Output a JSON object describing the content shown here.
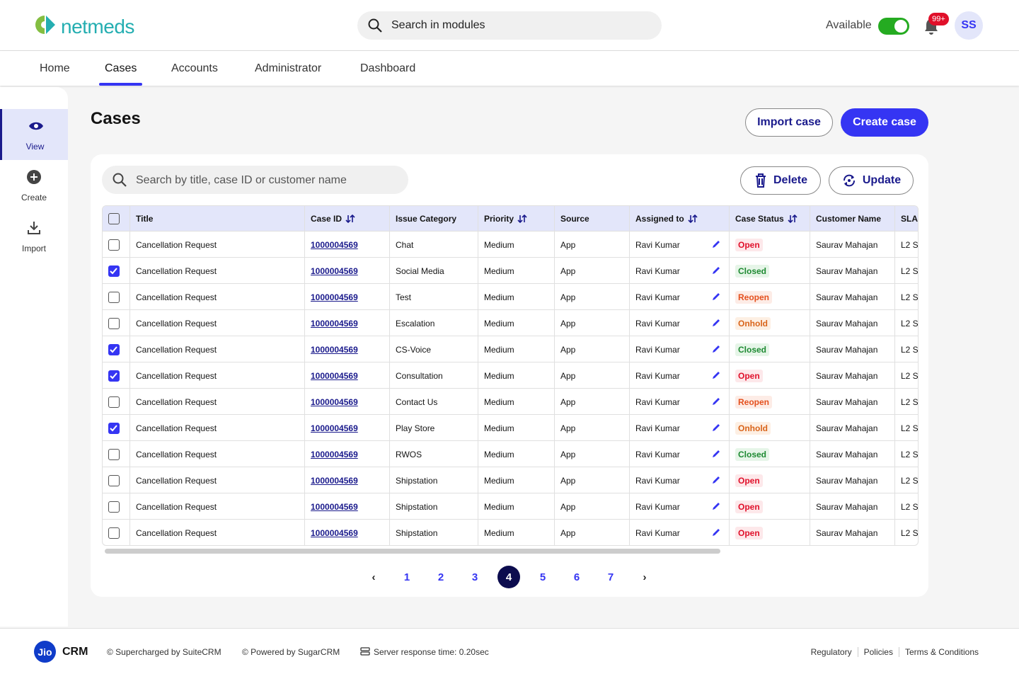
{
  "header": {
    "logo": "netmeds",
    "search_placeholder": "Search in modules",
    "availability": "Available",
    "notification_badge": "99+",
    "avatar": "SS"
  },
  "nav": [
    "Home",
    "Cases",
    "Accounts",
    "Administrator",
    "Dashboard"
  ],
  "nav_active": "Cases",
  "sidebar": [
    "View",
    "Create",
    "Import"
  ],
  "page": {
    "title": "Cases",
    "import_button": "Import case",
    "create_button": "Create case"
  },
  "toolbar": {
    "search_placeholder": "Search by title, case ID or customer name",
    "delete": "Delete",
    "update": "Update"
  },
  "table": {
    "columns": [
      "Title",
      "Case ID",
      "Issue Category",
      "Priority",
      "Source",
      "Assigned to",
      "Case Status",
      "Customer Name",
      "SLA"
    ],
    "status_colors": {
      "Open": {
        "color": "#e0102a",
        "bg": "#fde8ea"
      },
      "Closed": {
        "color": "#1e8a32",
        "bg": "#e6f5e8"
      },
      "Reopen": {
        "color": "#e4501e",
        "bg": "#fdece6"
      },
      "Onhold": {
        "color": "#d9641a",
        "bg": "#fdefe3"
      }
    },
    "rows": [
      {
        "checked": false,
        "cells": [
          "Cancellation Request",
          "1000004569",
          "Chat",
          "Medium",
          "App",
          "Ravi Kumar",
          "Open",
          "Saurav Mahajan",
          "L2 S"
        ]
      },
      {
        "checked": true,
        "cells": [
          "Cancellation Request",
          "1000004569",
          "Social Media",
          "Medium",
          "App",
          "Ravi Kumar",
          "Closed",
          "Saurav Mahajan",
          "L2 S"
        ]
      },
      {
        "checked": false,
        "cells": [
          "Cancellation Request",
          "1000004569",
          "Test",
          "Medium",
          "App",
          "Ravi Kumar",
          "Reopen",
          "Saurav Mahajan",
          "L2 S"
        ]
      },
      {
        "checked": false,
        "cells": [
          "Cancellation Request",
          "1000004569",
          "Escalation",
          "Medium",
          "App",
          "Ravi Kumar",
          "Onhold",
          "Saurav Mahajan",
          "L2 S"
        ]
      },
      {
        "checked": true,
        "cells": [
          "Cancellation Request",
          "1000004569",
          "CS-Voice",
          "Medium",
          "App",
          "Ravi Kumar",
          "Closed",
          "Saurav Mahajan",
          "L2 S"
        ]
      },
      {
        "checked": true,
        "cells": [
          "Cancellation Request",
          "1000004569",
          "Consultation",
          "Medium",
          "App",
          "Ravi Kumar",
          "Open",
          "Saurav Mahajan",
          "L2 S"
        ]
      },
      {
        "checked": false,
        "cells": [
          "Cancellation Request",
          "1000004569",
          "Contact Us",
          "Medium",
          "App",
          "Ravi Kumar",
          "Reopen",
          "Saurav Mahajan",
          "L2 S"
        ]
      },
      {
        "checked": true,
        "cells": [
          "Cancellation Request",
          "1000004569",
          "Play Store",
          "Medium",
          "App",
          "Ravi Kumar",
          "Onhold",
          "Saurav Mahajan",
          "L2 S"
        ]
      },
      {
        "checked": false,
        "cells": [
          "Cancellation Request",
          "1000004569",
          "RWOS",
          "Medium",
          "App",
          "Ravi Kumar",
          "Closed",
          "Saurav Mahajan",
          "L2 S"
        ]
      },
      {
        "checked": false,
        "cells": [
          "Cancellation Request",
          "1000004569",
          "Shipstation",
          "Medium",
          "App",
          "Ravi Kumar",
          "Open",
          "Saurav Mahajan",
          "L2 S"
        ]
      },
      {
        "checked": false,
        "cells": [
          "Cancellation Request",
          "1000004569",
          "Shipstation",
          "Medium",
          "App",
          "Ravi Kumar",
          "Open",
          "Saurav Mahajan",
          "L2 S"
        ]
      },
      {
        "checked": false,
        "cells": [
          "Cancellation Request",
          "1000004569",
          "Shipstation",
          "Medium",
          "App",
          "Ravi Kumar",
          "Open",
          "Saurav Mahajan",
          "L2 S"
        ]
      }
    ]
  },
  "pagination": {
    "pages": [
      "1",
      "2",
      "3",
      "4",
      "5",
      "6",
      "7"
    ],
    "current": "4"
  },
  "footer": {
    "logo_badge": "Jio",
    "logo_text": "CRM",
    "supercharged": "© Supercharged by SuiteCRM",
    "powered": "© Powered by SugarCRM",
    "response": "Server response time: 0.20sec",
    "links": [
      "Regulatory",
      "Policies",
      "Terms & Conditions"
    ]
  }
}
